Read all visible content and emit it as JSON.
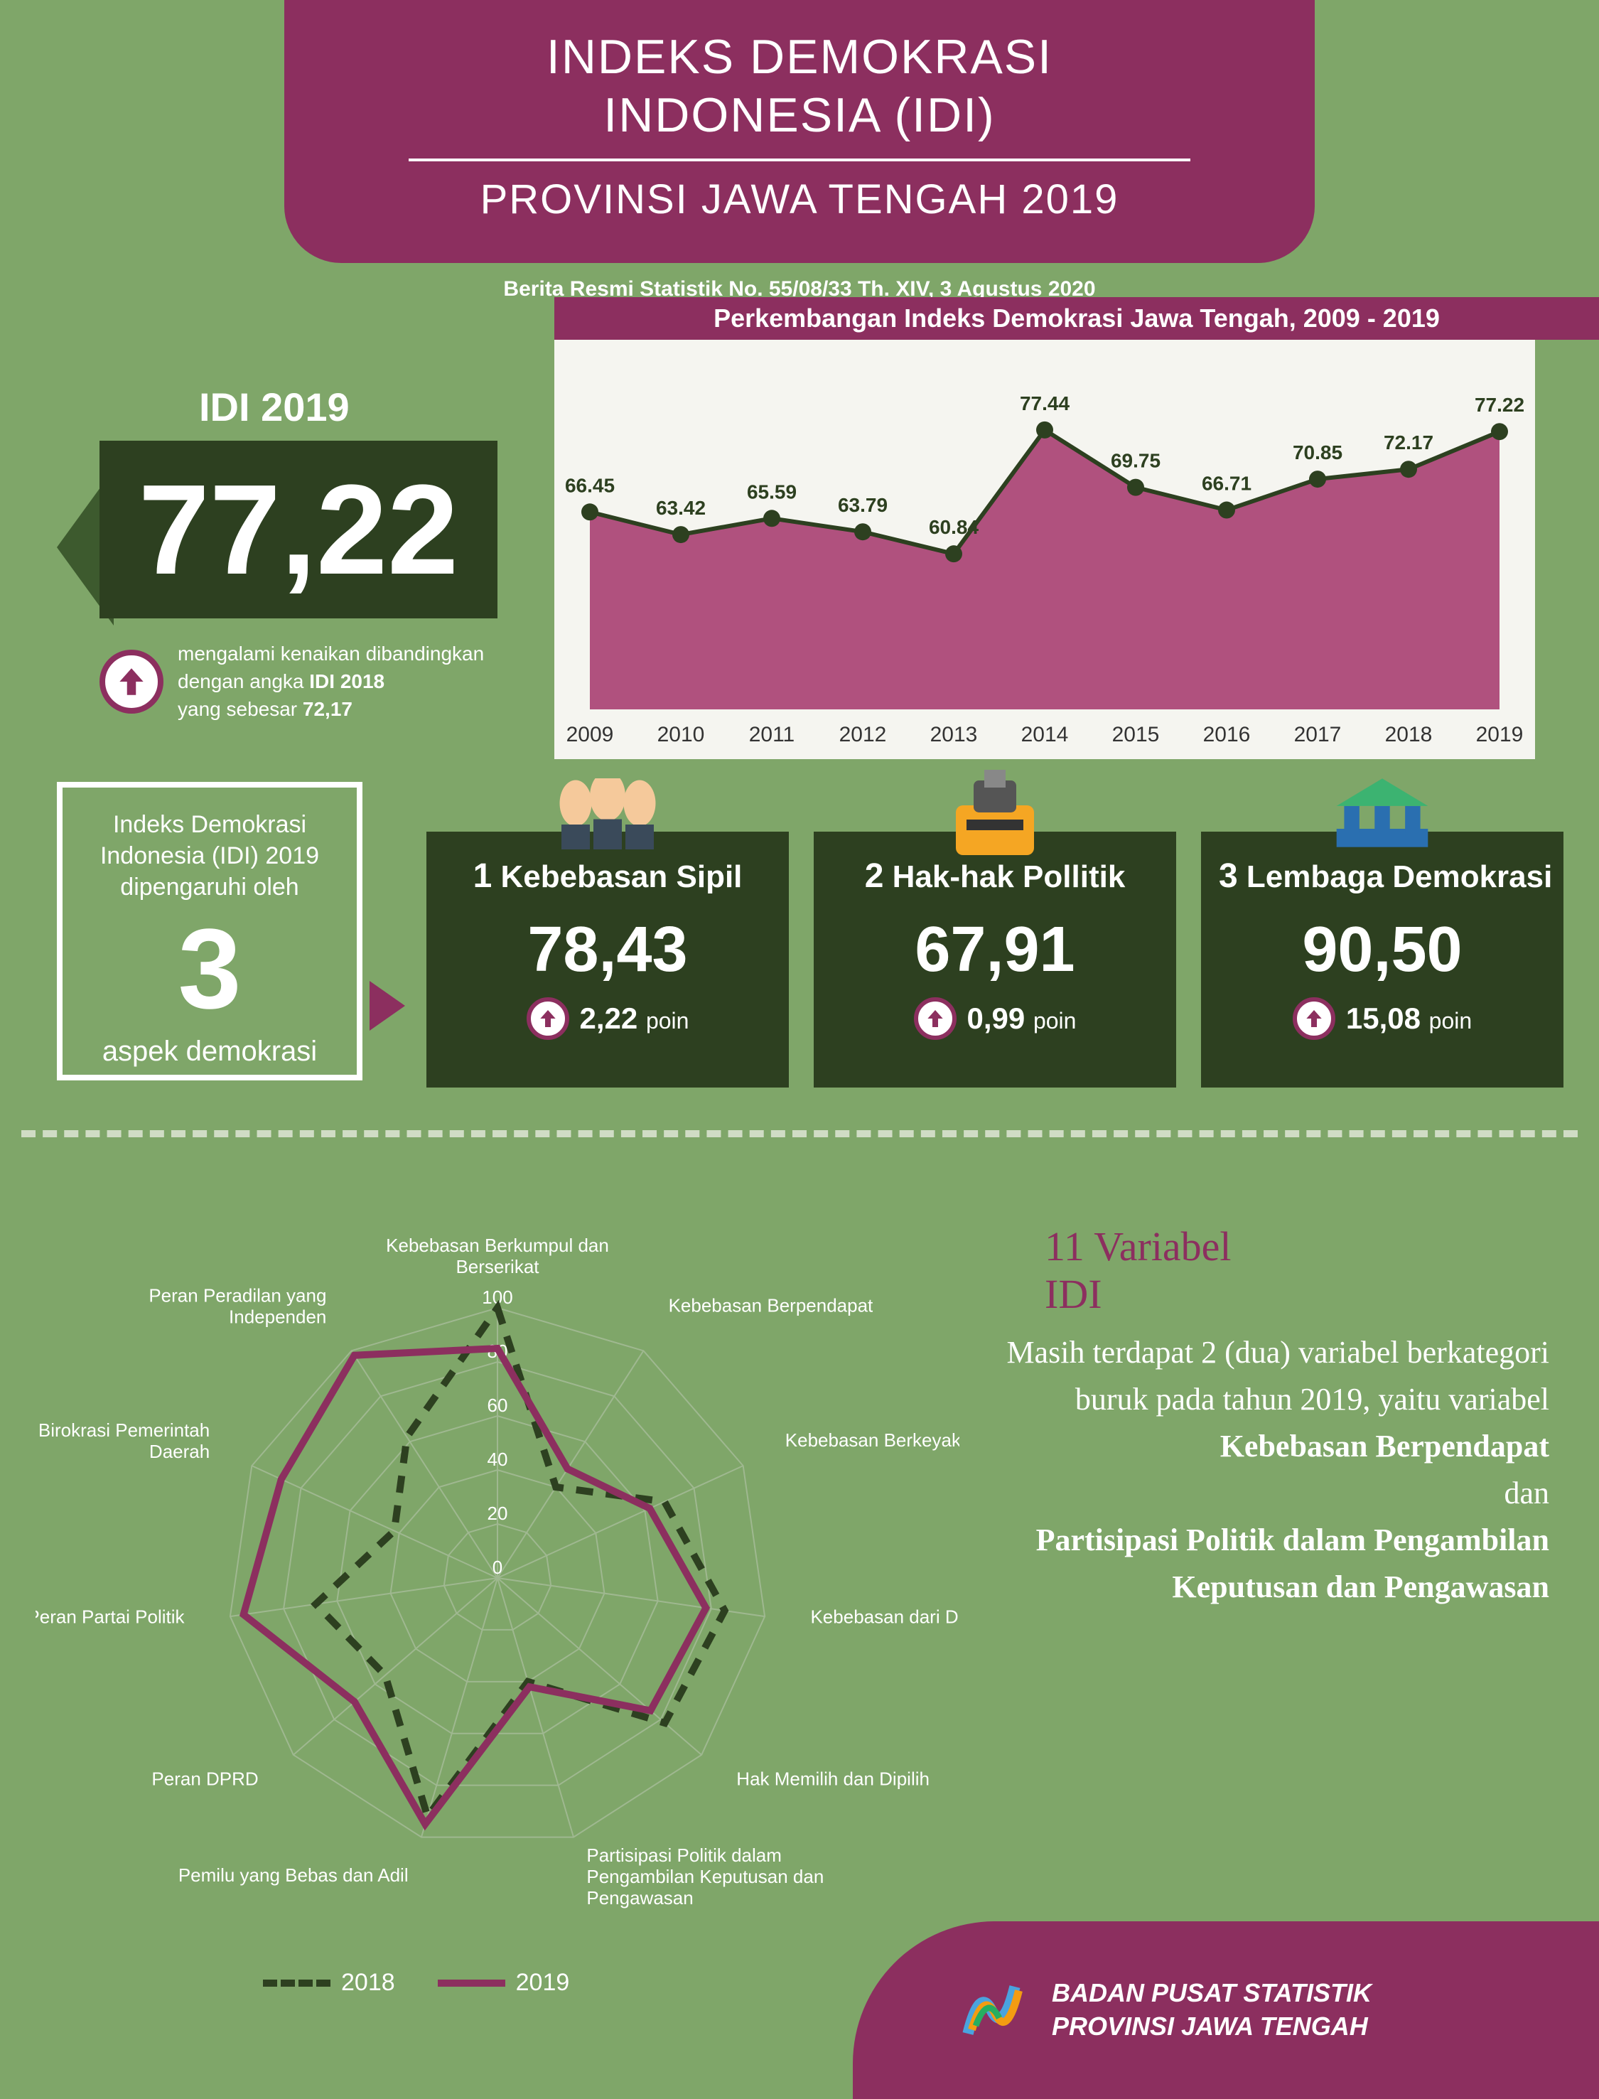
{
  "header": {
    "title_line1": "INDEKS DEMOKRASI",
    "title_line2": "INDONESIA (IDI)",
    "subtitle": "PROVINSI JAWA TENGAH 2019"
  },
  "press_line": "Berita Resmi Statistik No. 55/08/33 Th. XIV, 3 Agustus 2020",
  "idi_label": "IDI 2019",
  "idi_value": "77,22",
  "increase_text_1": "mengalami kenaikan dibandingkan",
  "increase_text_2": "dengan angka ",
  "increase_text_bold": "IDI 2018",
  "increase_text_3": "yang sebesar ",
  "increase_prev": "72,17",
  "aspek": {
    "top": "Indeks Demokrasi Indonesia (IDI) 2019 dipengaruhi oleh",
    "number": "3",
    "bottom": "aspek demokrasi"
  },
  "line_chart": {
    "title": "Perkembangan Indeks Demokrasi Jawa Tengah, 2009 - 2019",
    "type": "line-area",
    "years": [
      "2009",
      "2010",
      "2011",
      "2012",
      "2013",
      "2014",
      "2015",
      "2016",
      "2017",
      "2018",
      "2019"
    ],
    "values": [
      66.45,
      63.42,
      65.59,
      63.79,
      60.84,
      77.44,
      69.75,
      66.71,
      70.85,
      72.17,
      77.22
    ],
    "ymin": 40,
    "ymax": 80,
    "fill_color": "#b0517e",
    "line_color": "#2d4020",
    "dot_color": "#2d4020",
    "bg_color": "#f5f5f0",
    "label_color": "#2d4020",
    "line_width": 6,
    "dot_radius": 12,
    "label_fontsize": 28
  },
  "aspects": [
    {
      "num": "1",
      "name": "Kebebasan Sipil",
      "value": "78,43",
      "change": "2,22",
      "unit": "poin",
      "icon": "hands"
    },
    {
      "num": "2",
      "name": "Hak-hak Pollitik",
      "value": "67,91",
      "change": "0,99",
      "unit": "poin",
      "icon": "ballot"
    },
    {
      "num": "3",
      "name": "Lembaga Demokrasi",
      "value": "90,50",
      "change": "15,08",
      "unit": "poin",
      "icon": "institution"
    }
  ],
  "radar": {
    "type": "radar",
    "labels": [
      "Kebebasan Berkumpul dan\nBerserikat",
      "Kebebasan Berpendapat",
      "Kebebasan Berkeyakinan",
      "Kebebasan dari Diskriminasi",
      "Hak Memilih dan Dipilih",
      "Partisipasi Politik dalam\nPengambilan Keputusan dan\nPengawasan",
      "Pemilu yang Bebas dan Adil",
      "Peran DPRD",
      "Peran Partai Politik",
      "Peran Birokrasi Pemerintah\nDaerah",
      "Peran Peradilan yang\nIndependen"
    ],
    "rings": [
      0,
      20,
      40,
      60,
      80,
      100
    ],
    "max": 100,
    "series": {
      "2018": [
        100,
        40,
        68,
        85,
        82,
        40,
        92,
        55,
        68,
        42,
        62
      ],
      "2019": [
        85,
        48,
        62,
        78,
        75,
        42,
        95,
        70,
        95,
        88,
        98
      ]
    },
    "colors": {
      "2018": "#2d4020",
      "2019": "#8c2f5f"
    },
    "style_2018": "dashed",
    "style_2019": "solid",
    "line_width": 10,
    "grid_color": "#9fb890",
    "label_color": "#ffffff",
    "label_fontsize": 26
  },
  "legend": {
    "y2018": "2018",
    "y2019": "2019"
  },
  "variabel": {
    "title_line1": "11 Variabel",
    "title_line2": "IDI",
    "body_1": "Masih terdapat 2 (dua) variabel berkategori buruk pada tahun 2019, yaitu variabel",
    "bold_1": "Kebebasan Berpendapat",
    "dan": "dan",
    "bold_2": "Partisipasi Politik dalam Pengambilan Keputusan dan Pengawasan"
  },
  "footer": {
    "line1": "BADAN PUSAT STATISTIK",
    "line2": "PROVINSI JAWA TENGAH"
  },
  "colors": {
    "bg": "#7fa669",
    "dark_green": "#2d4020",
    "maroon": "#8c2f5f",
    "white": "#ffffff"
  }
}
